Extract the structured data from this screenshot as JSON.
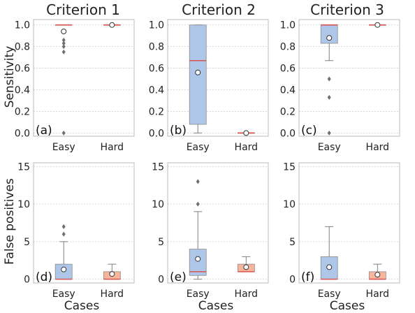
{
  "figure": {
    "column_titles": [
      "Criterion 1",
      "Criterion 2",
      "Criterion 3"
    ],
    "row_ylabels": [
      "Sensitivity",
      "False positives"
    ],
    "xlabel": "Cases"
  },
  "chart_data": [
    {
      "panel": "(a)",
      "row": 0,
      "col": 0,
      "type": "box",
      "categories": [
        "Easy",
        "Hard"
      ],
      "ylim": [
        -0.03,
        1.05
      ],
      "yticks": [
        0.0,
        0.2,
        0.4,
        0.6,
        0.8,
        1.0
      ],
      "ytick_labels": [
        "0.0",
        "0.2",
        "0.4",
        "0.6",
        "0.8",
        "1.0"
      ],
      "grid": true,
      "boxes": [
        {
          "category": "Easy",
          "color": "#aec7e8",
          "q1": 1.0,
          "median": 1.0,
          "q3": 1.0,
          "whislo": 1.0,
          "whishi": 1.0,
          "mean": 0.94,
          "fliers": [
            0.86,
            0.83,
            0.8,
            0.75,
            0.0
          ]
        },
        {
          "category": "Hard",
          "color": "#aec7e8",
          "q1": 1.0,
          "median": 1.0,
          "q3": 1.0,
          "whislo": 1.0,
          "whishi": 1.0,
          "mean": 1.0,
          "fliers": []
        }
      ]
    },
    {
      "panel": "(b)",
      "row": 0,
      "col": 1,
      "type": "box",
      "categories": [
        "Easy",
        "Hard"
      ],
      "ylim": [
        -0.03,
        1.05
      ],
      "yticks": [
        0.0,
        0.2,
        0.4,
        0.6,
        0.8,
        1.0
      ],
      "ytick_labels": [
        "0.0",
        "0.2",
        "0.4",
        "0.6",
        "0.8",
        "1.0"
      ],
      "grid": true,
      "boxes": [
        {
          "category": "Easy",
          "color": "#aec7e8",
          "q1": 0.08,
          "median": 0.67,
          "q3": 1.0,
          "whislo": 0.0,
          "whishi": 1.0,
          "mean": 0.56,
          "fliers": []
        },
        {
          "category": "Hard",
          "color": "#aec7e8",
          "q1": 0.0,
          "median": 0.0,
          "q3": 0.0,
          "whislo": 0.0,
          "whishi": 0.0,
          "mean": 0.0,
          "fliers": []
        }
      ]
    },
    {
      "panel": "(c)",
      "row": 0,
      "col": 2,
      "type": "box",
      "categories": [
        "Easy",
        "Hard"
      ],
      "ylim": [
        -0.03,
        1.05
      ],
      "yticks": [
        0.0,
        0.2,
        0.4,
        0.6,
        0.8,
        1.0
      ],
      "ytick_labels": [
        "0.0",
        "0.2",
        "0.4",
        "0.6",
        "0.8",
        "1.0"
      ],
      "grid": true,
      "boxes": [
        {
          "category": "Easy",
          "color": "#aec7e8",
          "q1": 0.83,
          "median": 1.0,
          "q3": 1.0,
          "whislo": 0.67,
          "whishi": 1.0,
          "mean": 0.88,
          "fliers": [
            0.5,
            0.33,
            0.0
          ]
        },
        {
          "category": "Hard",
          "color": "#aec7e8",
          "q1": 1.0,
          "median": 1.0,
          "q3": 1.0,
          "whislo": 1.0,
          "whishi": 1.0,
          "mean": 1.0,
          "fliers": []
        }
      ]
    },
    {
      "panel": "(d)",
      "row": 1,
      "col": 0,
      "type": "box",
      "categories": [
        "Easy",
        "Hard"
      ],
      "ylim": [
        -0.5,
        15.5
      ],
      "yticks": [
        0,
        5,
        10,
        15
      ],
      "ytick_labels": [
        "0",
        "5",
        "10",
        "15"
      ],
      "grid": true,
      "boxes": [
        {
          "category": "Easy",
          "color": "#aec7e8",
          "q1": 0.0,
          "median": 0.0,
          "q3": 2.0,
          "whislo": 0.0,
          "whishi": 5.0,
          "mean": 1.3,
          "fliers": [
            6,
            7
          ]
        },
        {
          "category": "Hard",
          "color": "#f7b69c",
          "q1": 0.0,
          "median": 0.0,
          "q3": 1.0,
          "whislo": 0.0,
          "whishi": 2.0,
          "mean": 0.7,
          "fliers": []
        }
      ]
    },
    {
      "panel": "(e)",
      "row": 1,
      "col": 1,
      "type": "box",
      "categories": [
        "Easy",
        "Hard"
      ],
      "ylim": [
        -0.5,
        15.5
      ],
      "yticks": [
        0,
        5,
        10,
        15
      ],
      "ytick_labels": [
        "0",
        "5",
        "10",
        "15"
      ],
      "grid": true,
      "boxes": [
        {
          "category": "Easy",
          "color": "#aec7e8",
          "q1": 0.5,
          "median": 1.0,
          "q3": 4.0,
          "whislo": 0.0,
          "whishi": 9.0,
          "mean": 2.7,
          "fliers": [
            10,
            13
          ]
        },
        {
          "category": "Hard",
          "color": "#f7b69c",
          "q1": 1.0,
          "median": 1.0,
          "q3": 2.0,
          "whislo": 1.0,
          "whishi": 3.0,
          "mean": 1.6,
          "fliers": []
        }
      ]
    },
    {
      "panel": "(f)",
      "row": 1,
      "col": 2,
      "type": "box",
      "categories": [
        "Easy",
        "Hard"
      ],
      "ylim": [
        -0.5,
        15.5
      ],
      "yticks": [
        0,
        5,
        10,
        15
      ],
      "ytick_labels": [
        "0",
        "5",
        "10",
        "15"
      ],
      "grid": true,
      "boxes": [
        {
          "category": "Easy",
          "color": "#aec7e8",
          "q1": 0.0,
          "median": 0.0,
          "q3": 3.0,
          "whislo": 0.0,
          "whishi": 7.0,
          "mean": 1.6,
          "fliers": []
        },
        {
          "category": "Hard",
          "color": "#f7b69c",
          "q1": 0.0,
          "median": 0.0,
          "q3": 1.0,
          "whislo": 0.0,
          "whishi": 2.0,
          "mean": 0.6,
          "fliers": []
        }
      ]
    }
  ]
}
